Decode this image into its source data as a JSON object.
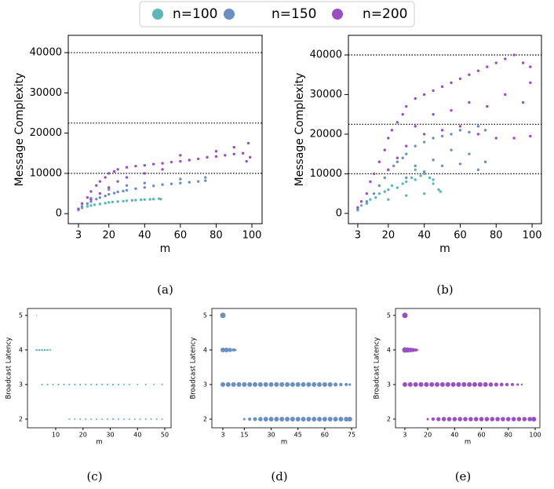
{
  "chart_data": [
    {
      "type": "scatter",
      "caption": "(a)",
      "xlabel": "m",
      "ylabel": "Message Complexity",
      "xlim": [
        -2.7,
        105.7
      ],
      "ylim": [
        -2500,
        44300
      ],
      "xticks": [
        3,
        20,
        40,
        60,
        80,
        100
      ],
      "yticks": [
        0,
        10000,
        20000,
        30000,
        40000
      ],
      "hlines": [
        10000,
        22500,
        40000
      ],
      "series": [
        {
          "name": "n=100",
          "color": "#5cb8b8",
          "x": [
            3,
            5,
            8,
            10,
            12,
            15,
            18,
            20,
            22,
            25,
            28,
            30,
            33,
            35,
            38,
            40,
            43,
            45,
            48,
            49
          ],
          "values": [
            900,
            1400,
            1800,
            2000,
            2200,
            2400,
            2600,
            2800,
            2900,
            3000,
            3100,
            3200,
            3300,
            3350,
            3450,
            3500,
            3550,
            3600,
            3700,
            3600
          ]
        },
        {
          "name": "n=150",
          "color": "#6b8fc0",
          "x": [
            3,
            5,
            8,
            10,
            13,
            15,
            18,
            20,
            23,
            25,
            28,
            30,
            35,
            40,
            45,
            50,
            55,
            60,
            65,
            70,
            74,
            20,
            30,
            40,
            60,
            74,
            10
          ],
          "values": [
            1000,
            1800,
            2500,
            3000,
            3600,
            4000,
            4400,
            4800,
            5100,
            5400,
            5600,
            5800,
            6200,
            6500,
            6900,
            7200,
            7400,
            7600,
            7800,
            8000,
            8200,
            6000,
            7000,
            7600,
            8600,
            9000,
            3800
          ]
        },
        {
          "name": "n=200",
          "color": "#9b4fc4",
          "x": [
            3,
            5,
            8,
            10,
            13,
            15,
            18,
            20,
            23,
            25,
            30,
            35,
            40,
            45,
            50,
            55,
            60,
            65,
            70,
            75,
            80,
            85,
            90,
            95,
            99,
            10,
            15,
            20,
            25,
            30,
            40,
            50,
            60,
            80,
            90,
            98,
            97
          ],
          "values": [
            1200,
            2500,
            4000,
            5500,
            7000,
            8000,
            9000,
            10000,
            10500,
            11000,
            11500,
            11800,
            12000,
            12300,
            12500,
            12800,
            13000,
            13300,
            13600,
            14000,
            14200,
            14500,
            14800,
            15000,
            14000,
            3500,
            5000,
            6500,
            8000,
            9000,
            10000,
            11000,
            14500,
            15500,
            16500,
            17500,
            13000
          ]
        }
      ]
    },
    {
      "type": "scatter",
      "caption": "(b)",
      "xlabel": "m",
      "ylabel": "Message Complexity",
      "xlim": [
        -2.2,
        105.2
      ],
      "ylim": [
        -2600,
        44950
      ],
      "xticks": [
        3,
        20,
        40,
        60,
        80,
        100
      ],
      "yticks": [
        0,
        10000,
        20000,
        30000,
        40000
      ],
      "hlines": [
        10000,
        22500,
        40000
      ],
      "series": [
        {
          "name": "n=100",
          "color": "#5cb8b8",
          "x": [
            3,
            5,
            8,
            10,
            13,
            15,
            18,
            20,
            22,
            25,
            28,
            30,
            33,
            35,
            38,
            40,
            43,
            45,
            48,
            49,
            20,
            30,
            40,
            35,
            45
          ],
          "values": [
            800,
            2000,
            2500,
            3500,
            4000,
            5000,
            5500,
            6000,
            7000,
            6500,
            7500,
            8000,
            9000,
            8500,
            9500,
            10000,
            9000,
            7500,
            6000,
            5500,
            3500,
            4500,
            5000,
            11000,
            8500
          ]
        },
        {
          "name": "n=150",
          "color": "#6b8fc0",
          "x": [
            3,
            8,
            12,
            15,
            18,
            20,
            23,
            25,
            28,
            30,
            35,
            40,
            45,
            50,
            55,
            60,
            65,
            70,
            74,
            30,
            40,
            50,
            60,
            70,
            74,
            55,
            65,
            45,
            35
          ],
          "values": [
            1000,
            3000,
            5000,
            7000,
            9000,
            11000,
            12000,
            13000,
            14000,
            15000,
            17000,
            18000,
            19000,
            19500,
            20000,
            21000,
            20500,
            22000,
            21000,
            9000,
            10500,
            12000,
            12500,
            11000,
            13000,
            16000,
            15000,
            13500,
            12000
          ]
        },
        {
          "name": "n=200",
          "color": "#9b4fc4",
          "x": [
            3,
            5,
            8,
            10,
            12,
            15,
            18,
            20,
            22,
            25,
            28,
            30,
            35,
            40,
            45,
            50,
            55,
            60,
            65,
            70,
            75,
            80,
            85,
            90,
            95,
            99,
            20,
            25,
            30,
            40,
            50,
            60,
            70,
            80,
            90,
            99,
            45,
            65,
            85,
            35,
            55,
            75,
            95,
            99
          ],
          "values": [
            1500,
            3000,
            5000,
            8000,
            10000,
            13000,
            16000,
            19000,
            21000,
            23000,
            25000,
            27000,
            29000,
            30000,
            31000,
            32000,
            33000,
            34000,
            35000,
            36000,
            37000,
            38000,
            39000,
            40000,
            38000,
            37000,
            11000,
            14000,
            17000,
            20000,
            21000,
            22000,
            20000,
            19000,
            19000,
            19500,
            25000,
            28000,
            30000,
            22000,
            26000,
            27000,
            28000,
            33000
          ]
        }
      ]
    },
    {
      "type": "scatter",
      "caption": "(c)",
      "xlabel": "m",
      "ylabel": "Broadcast Latency",
      "xlim": [
        -0.36,
        52.3
      ],
      "ylim": [
        1.75,
        5.2
      ],
      "xticks": [
        10,
        20,
        30,
        40,
        50
      ],
      "yticks": [
        2,
        3,
        4,
        5
      ],
      "series": [
        {
          "color": "#5cb8b8",
          "x": [
            3,
            3,
            4,
            5,
            6,
            7,
            8,
            5,
            7,
            9,
            11,
            13,
            15,
            17,
            19,
            21,
            23,
            25,
            27,
            29,
            31,
            33,
            35,
            37,
            40,
            43,
            46,
            49,
            15,
            17,
            19,
            21,
            23,
            25,
            27,
            29,
            31,
            33,
            35,
            37,
            39,
            41,
            43,
            45,
            47,
            49
          ],
          "values": [
            5,
            4,
            4,
            4,
            4,
            4,
            4,
            3,
            3,
            3,
            3,
            3,
            3,
            3,
            3,
            3,
            3,
            3,
            3,
            3,
            3,
            3,
            3,
            3,
            3,
            3,
            3,
            3,
            2,
            2,
            2,
            2,
            2,
            2,
            2,
            2,
            2,
            2,
            2,
            2,
            2,
            2,
            2,
            2,
            2,
            2
          ],
          "sizes": [
            0.6,
            1.3,
            1.3,
            1.3,
            1.3,
            1.3,
            1.1,
            1.1,
            1.1,
            1.1,
            1.1,
            1.1,
            1.1,
            1.1,
            1.1,
            1.1,
            1.1,
            1.1,
            1.1,
            1.1,
            1.1,
            1.1,
            1,
            1,
            1,
            1,
            1,
            1,
            1,
            1,
            1,
            1,
            1,
            1,
            1,
            1,
            1,
            1,
            1,
            1,
            1,
            1,
            1,
            1,
            1,
            1
          ]
        }
      ]
    },
    {
      "type": "scatter",
      "caption": "(d)",
      "xlabel": "m",
      "ylabel": "Broadcast Latency",
      "xlim": [
        -3.15,
        77.6
      ],
      "ylim": [
        1.75,
        5.2
      ],
      "xticks": [
        3,
        15,
        30,
        45,
        60,
        75
      ],
      "yticks": [
        2,
        3,
        4,
        5
      ],
      "series": [
        {
          "color": "#6b8fc0",
          "x": [
            3,
            3,
            5,
            7,
            9,
            10,
            3,
            6,
            9,
            12,
            15,
            18,
            21,
            24,
            27,
            30,
            33,
            36,
            39,
            42,
            45,
            48,
            51,
            54,
            57,
            60,
            63,
            66,
            69,
            72,
            74,
            15,
            18,
            21,
            24,
            27,
            30,
            33,
            36,
            39,
            42,
            45,
            48,
            51,
            54,
            57,
            60,
            63,
            66,
            69,
            72,
            74
          ],
          "values": [
            5,
            4,
            4,
            4,
            4,
            4,
            3,
            3,
            3,
            3,
            3,
            3,
            3,
            3,
            3,
            3,
            3,
            3,
            3,
            3,
            3,
            3,
            3,
            3,
            3,
            3,
            3,
            3,
            3,
            3,
            3,
            2,
            2,
            2,
            2,
            2,
            2,
            2,
            2,
            2,
            2,
            2,
            2,
            2,
            2,
            2,
            2,
            2,
            2,
            2,
            2,
            2
          ],
          "sizes": [
            3.5,
            3,
            3,
            2.6,
            2,
            1.5,
            3,
            3,
            3,
            3,
            3,
            3,
            3,
            3,
            3,
            3,
            3,
            3,
            3,
            3,
            3,
            3,
            3,
            3,
            3,
            3,
            3,
            2.6,
            2.2,
            2,
            1.6,
            1.5,
            2,
            2.5,
            2.8,
            3,
            3,
            3,
            3,
            3,
            3,
            3,
            3,
            3,
            3,
            3,
            3,
            3,
            3,
            3,
            3,
            3
          ]
        }
      ]
    },
    {
      "type": "scatter",
      "caption": "(e)",
      "xlabel": "m",
      "ylabel": "Broadcast Latency",
      "xlim": [
        -4.0,
        103.5
      ],
      "ylim": [
        1.75,
        5.2
      ],
      "xticks": [
        3,
        20,
        40,
        60,
        80,
        100
      ],
      "yticks": [
        2,
        3,
        4,
        5
      ],
      "series": [
        {
          "color": "#9b4fc4",
          "x": [
            3,
            3,
            5,
            7,
            9,
            11,
            12,
            3,
            7,
            11,
            15,
            19,
            23,
            27,
            31,
            35,
            39,
            43,
            47,
            51,
            55,
            59,
            63,
            67,
            71,
            75,
            79,
            83,
            87,
            90,
            20,
            24,
            28,
            32,
            36,
            40,
            44,
            48,
            52,
            56,
            60,
            64,
            68,
            72,
            76,
            80,
            84,
            88,
            92,
            96,
            99
          ],
          "values": [
            5,
            4,
            4,
            4,
            4,
            4,
            4,
            3,
            3,
            3,
            3,
            3,
            3,
            3,
            3,
            3,
            3,
            3,
            3,
            3,
            3,
            3,
            3,
            3,
            3,
            3,
            3,
            3,
            3,
            3,
            2,
            2,
            2,
            2,
            2,
            2,
            2,
            2,
            2,
            2,
            2,
            2,
            2,
            2,
            2,
            2,
            2,
            2,
            2,
            2,
            2
          ],
          "sizes": [
            3.5,
            3.5,
            3.2,
            3,
            2.6,
            2,
            1.5,
            3,
            3,
            3,
            3,
            3,
            3,
            3,
            3,
            3,
            3,
            3,
            3,
            3,
            3,
            3,
            3,
            2.8,
            2.6,
            2.4,
            2.2,
            2,
            1.6,
            1.2,
            1.5,
            2.2,
            2.6,
            2.8,
            2.8,
            2.8,
            2.8,
            2.8,
            2.8,
            2.8,
            2.8,
            2.8,
            2.8,
            2.8,
            2.8,
            2.8,
            2.8,
            2.8,
            2.8,
            2.8,
            3
          ]
        }
      ]
    }
  ]
}
